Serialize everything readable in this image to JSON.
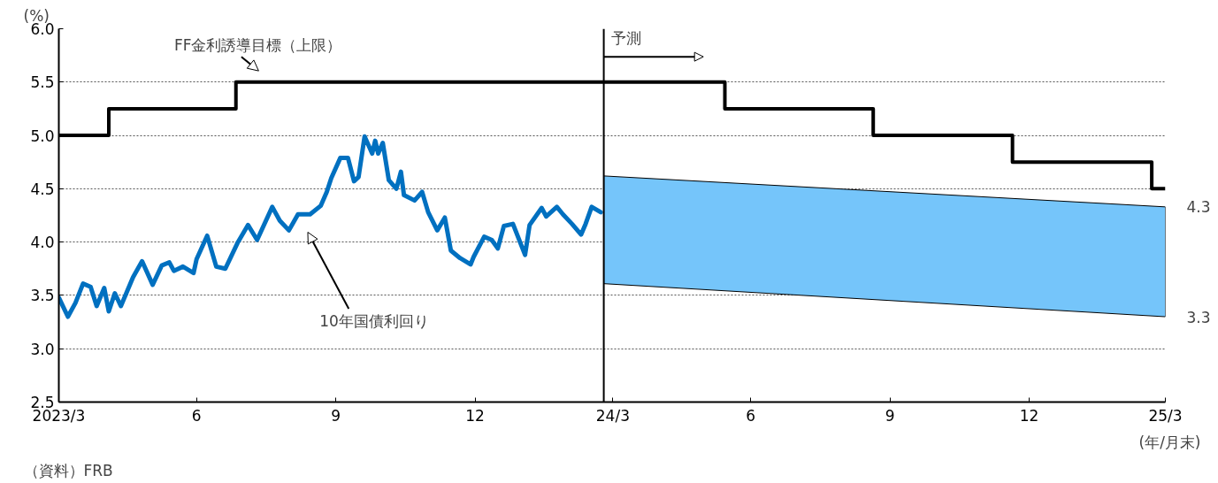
{
  "chart_data": {
    "type": "line",
    "ylabel": "(%)",
    "xlabel": "(年/月末)",
    "xlim": [
      "2023-03-31",
      "2025-03-31"
    ],
    "ylim": [
      2.5,
      6.0
    ],
    "xticks": [
      {
        "value": "2023-03-31",
        "label": "2023/3"
      },
      {
        "value": "2023-06-30",
        "label": "6"
      },
      {
        "value": "2023-09-30",
        "label": "9"
      },
      {
        "value": "2023-12-31",
        "label": "12"
      },
      {
        "value": "2024-03-31",
        "label": "24/3"
      },
      {
        "value": "2024-06-30",
        "label": "6"
      },
      {
        "value": "2024-09-30",
        "label": "9"
      },
      {
        "value": "2024-12-31",
        "label": "12"
      },
      {
        "value": "2025-03-31",
        "label": "25/3"
      }
    ],
    "yticks": [
      {
        "value": 2.5,
        "label": "2.5"
      },
      {
        "value": 3.0,
        "label": "3.0"
      },
      {
        "value": 3.5,
        "label": "3.5"
      },
      {
        "value": 4.0,
        "label": "4.0"
      },
      {
        "value": 4.5,
        "label": "4.5"
      },
      {
        "value": 5.0,
        "label": "5.0"
      },
      {
        "value": 5.5,
        "label": "5.5"
      },
      {
        "value": 6.0,
        "label": "6.0"
      }
    ],
    "grid": true,
    "line_style": "solid",
    "series": [
      {
        "type": "step",
        "color": "#000000",
        "x": [
          "2023-03-31",
          "2023-05-03",
          "2023-07-26",
          "2024-06-13",
          "2024-09-19",
          "2024-12-20",
          "2025-03-22",
          "2025-03-31"
        ],
        "values": [
          5.0,
          5.25,
          5.5,
          5.25,
          5.0,
          4.75,
          4.5,
          4.5
        ]
      },
      {
        "color": "#0070c0",
        "x": [
          "2023-03-31",
          "2023-04-06",
          "2023-04-11",
          "2023-04-16",
          "2023-04-21",
          "2023-04-25",
          "2023-04-30",
          "2023-05-03",
          "2023-05-07",
          "2023-05-11",
          "2023-05-19",
          "2023-05-25",
          "2023-06-01",
          "2023-06-07",
          "2023-06-12",
          "2023-06-15",
          "2023-06-21",
          "2023-06-28",
          "2023-06-30",
          "2023-07-07",
          "2023-07-13",
          "2023-07-19",
          "2023-07-27",
          "2023-08-03",
          "2023-08-09",
          "2023-08-19",
          "2023-08-24",
          "2023-08-30",
          "2023-09-05",
          "2023-09-13",
          "2023-09-20",
          "2023-09-24",
          "2023-09-27",
          "2023-10-03",
          "2023-10-08",
          "2023-10-12",
          "2023-10-15",
          "2023-10-19",
          "2023-10-24",
          "2023-10-26",
          "2023-10-28",
          "2023-10-31",
          "2023-11-04",
          "2023-11-09",
          "2023-11-12",
          "2023-11-14",
          "2023-11-21",
          "2023-11-26",
          "2023-11-30",
          "2023-12-06",
          "2023-12-11",
          "2023-12-15",
          "2023-12-21",
          "2023-12-28",
          "2023-12-30",
          "2024-01-06",
          "2024-01-11",
          "2024-01-15",
          "2024-01-19",
          "2024-01-25",
          "2024-02-02",
          "2024-02-05",
          "2024-02-13",
          "2024-02-16",
          "2024-02-23",
          "2024-02-27",
          "2024-03-04",
          "2024-03-10",
          "2024-03-13",
          "2024-03-17",
          "2024-03-23"
        ],
        "values": [
          3.48,
          3.3,
          3.43,
          3.61,
          3.58,
          3.4,
          3.57,
          3.35,
          3.52,
          3.4,
          3.67,
          3.82,
          3.6,
          3.78,
          3.81,
          3.73,
          3.77,
          3.71,
          3.84,
          4.06,
          3.77,
          3.75,
          3.99,
          4.16,
          4.02,
          4.33,
          4.2,
          4.11,
          4.26,
          4.26,
          4.34,
          4.47,
          4.6,
          4.79,
          4.79,
          4.57,
          4.61,
          4.99,
          4.83,
          4.95,
          4.83,
          4.93,
          4.58,
          4.5,
          4.66,
          4.44,
          4.39,
          4.47,
          4.28,
          4.11,
          4.23,
          3.92,
          3.85,
          3.79,
          3.86,
          4.05,
          4.02,
          3.94,
          4.15,
          4.17,
          3.88,
          4.16,
          4.32,
          4.24,
          4.33,
          4.26,
          4.17,
          4.07,
          4.17,
          4.33,
          4.28
        ]
      },
      {
        "type": "area",
        "color": "#75c5fa",
        "x": [
          "2024-03-25",
          "2025-03-31"
        ],
        "values": [
          null,
          null
        ],
        "upper": [
          4.62,
          4.33
        ],
        "lower": [
          3.61,
          3.3
        ]
      }
    ],
    "ref_lines": [
      {
        "axis": "x",
        "value": "2024-03-25",
        "label": "予測",
        "color": "#000000"
      }
    ],
    "annotations": [
      {
        "text": "FF金利誘導目標（上限）",
        "x": "2023-08-10",
        "y": 5.5
      },
      "10年国債利回り",
      "4.3",
      "3.3",
      "（資料）FRB"
    ]
  }
}
